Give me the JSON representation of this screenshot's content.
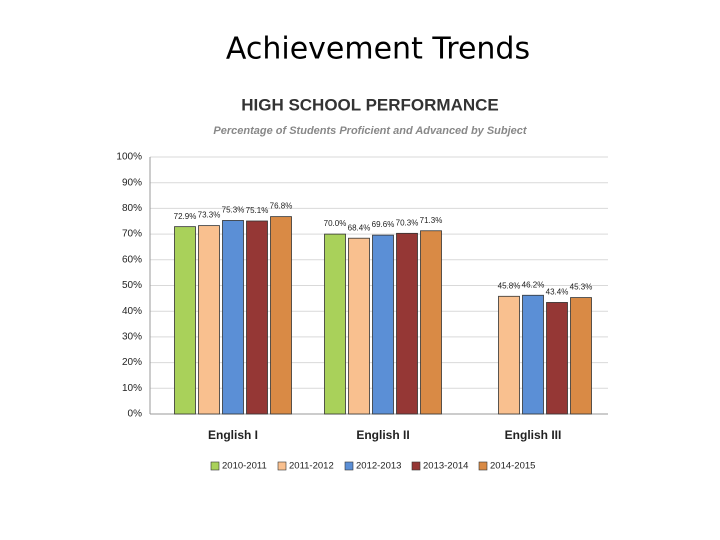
{
  "slide_title": "Achievement Trends",
  "chart_data": {
    "type": "bar",
    "title": "HIGH SCHOOL PERFORMANCE",
    "subtitle": "Percentage of Students Proficient and Advanced by Subject",
    "categories": [
      "English I",
      "English II",
      "English III"
    ],
    "series": [
      {
        "name": "2010-2011",
        "color": "#a9d15a",
        "values": [
          72.9,
          70.0,
          null
        ],
        "value_labels": [
          "72.9%",
          "70.0%",
          null
        ]
      },
      {
        "name": "2011-2012",
        "color": "#f9c08f",
        "values": [
          73.3,
          68.4,
          45.8
        ],
        "value_labels": [
          "73.3%",
          "68.4%",
          "45.8%"
        ]
      },
      {
        "name": "2012-2013",
        "color": "#5b8fd6",
        "values": [
          75.3,
          69.6,
          46.2
        ],
        "value_labels": [
          "75.3%",
          "69.6%",
          "46.2%"
        ]
      },
      {
        "name": "2013-2014",
        "color": "#953735",
        "values": [
          75.1,
          70.3,
          43.4
        ],
        "value_labels": [
          "75.1%",
          "70.3%",
          "43.4%"
        ]
      },
      {
        "name": "2014-2015",
        "color": "#d98a45",
        "values": [
          76.8,
          71.3,
          45.3
        ],
        "value_labels": [
          "76.8%",
          "71.3%",
          "45.3%"
        ]
      }
    ],
    "ylim": [
      0,
      100
    ],
    "yticks": [
      {
        "value": 0,
        "label": "0%"
      },
      {
        "value": 10,
        "label": "10%"
      },
      {
        "value": 20,
        "label": "20%"
      },
      {
        "value": 30,
        "label": "30%"
      },
      {
        "value": 40,
        "label": "40%"
      },
      {
        "value": 50,
        "label": "50%"
      },
      {
        "value": 60,
        "label": "60%"
      },
      {
        "value": 70,
        "label": "70%"
      },
      {
        "value": 80,
        "label": "80%"
      },
      {
        "value": 90,
        "label": "90%"
      },
      {
        "value": 100,
        "label": "100%"
      }
    ],
    "grid": true,
    "legend": "bottom"
  }
}
